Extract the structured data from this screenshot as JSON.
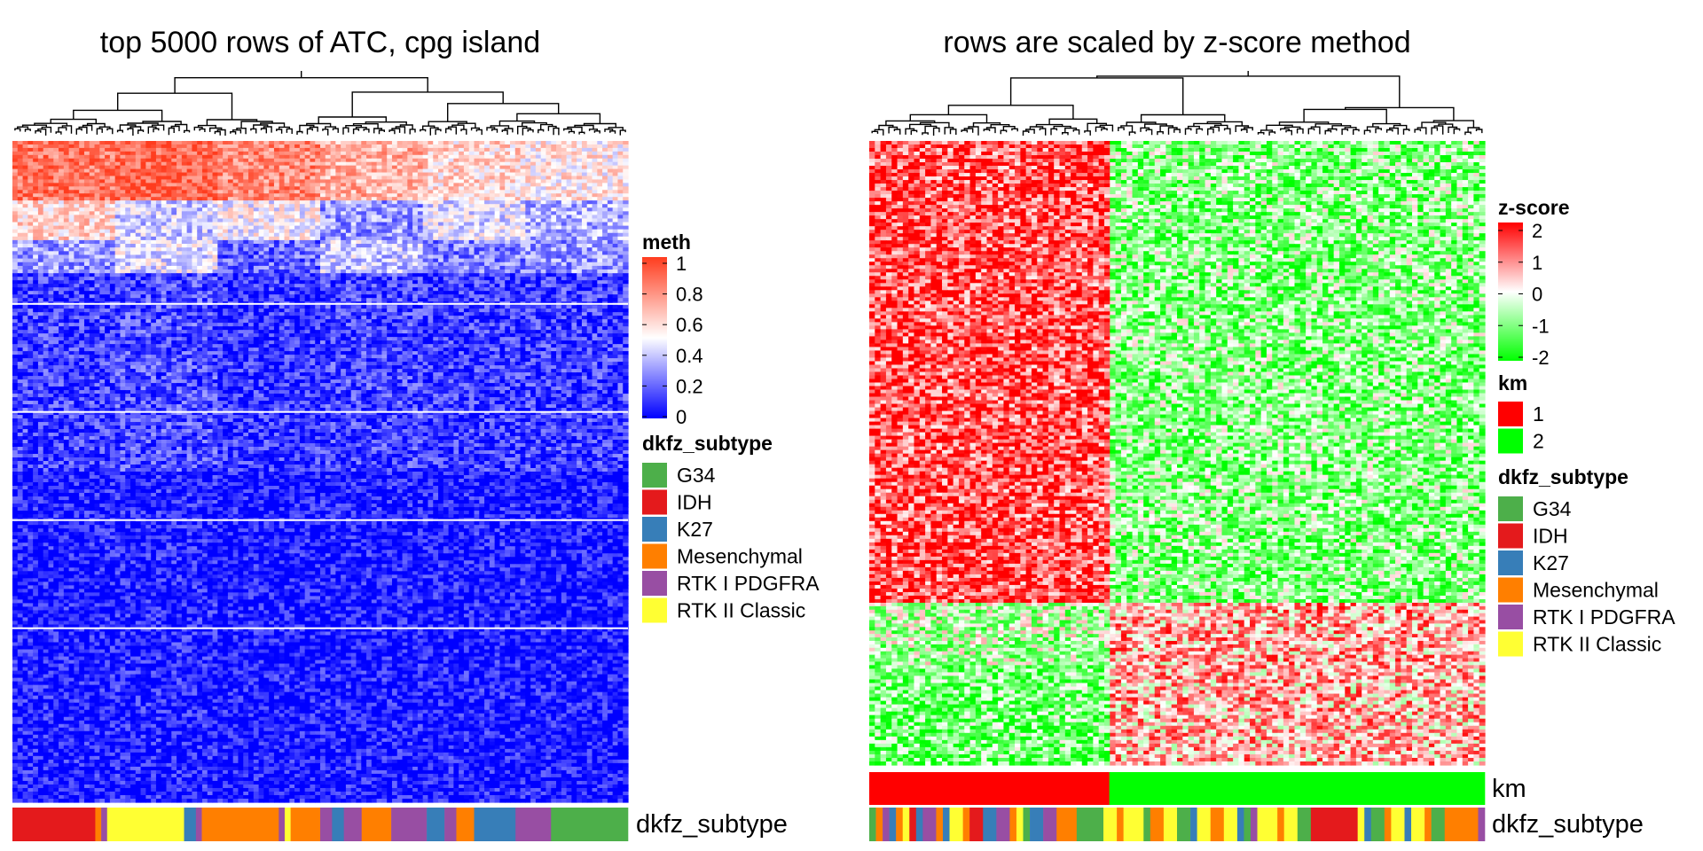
{
  "chart_data": [
    {
      "type": "heatmap",
      "title": "top 5000 rows of ATC, cpg island",
      "n_rows": 5000,
      "row_split_lines": 4,
      "dendrogram": "columns",
      "bands": [
        {
          "values": [
            0.85,
            0.9,
            0.8,
            0.7,
            0.6,
            0.55
          ],
          "weight": 0.09
        },
        {
          "values": [
            0.6,
            0.4,
            0.5,
            0.3,
            0.45,
            0.35
          ],
          "weight": 0.06
        },
        {
          "values": [
            0.3,
            0.45,
            0.2,
            0.4,
            0.25,
            0.3
          ],
          "weight": 0.05
        },
        {
          "values": [
            0.12,
            0.15,
            0.1,
            0.13,
            0.11,
            0.12
          ],
          "weight": 0.3
        },
        {
          "values": [
            0.05,
            0.06,
            0.04,
            0.05,
            0.05,
            0.04
          ],
          "weight": 0.5
        }
      ],
      "legend_meth": {
        "title": "meth",
        "ticks": [
          "1",
          "0.8",
          "0.6",
          "0.4",
          "0.2",
          "0"
        ],
        "colors": [
          "#0000ff",
          "#ffffff",
          "#ff3c1e"
        ]
      },
      "legend_subtype": {
        "title": "dkfz_subtype",
        "entries": [
          {
            "label": "G34",
            "color": "#4daf4a"
          },
          {
            "label": "IDH",
            "color": "#e41a1c"
          },
          {
            "label": "K27",
            "color": "#377eb8"
          },
          {
            "label": "Mesenchymal",
            "color": "#ff7f00"
          },
          {
            "label": "RTK I PDGFRA",
            "color": "#984ea3"
          },
          {
            "label": "RTK II Classic",
            "color": "#ffff33"
          }
        ]
      },
      "annotation_label": "dkfz_subtype",
      "annotation_segments": [
        {
          "cat": "IDH",
          "w": 14
        },
        {
          "cat": "Mesenchymal",
          "w": 1
        },
        {
          "cat": "RTK I PDGFRA",
          "w": 1
        },
        {
          "cat": "RTK II Classic",
          "w": 13
        },
        {
          "cat": "K27",
          "w": 2
        },
        {
          "cat": "RTK I PDGFRA",
          "w": 1
        },
        {
          "cat": "Mesenchymal",
          "w": 13
        },
        {
          "cat": "RTK I PDGFRA",
          "w": 1
        },
        {
          "cat": "RTK II Classic",
          "w": 1
        },
        {
          "cat": "Mesenchymal",
          "w": 5
        },
        {
          "cat": "RTK I PDGFRA",
          "w": 2
        },
        {
          "cat": "K27",
          "w": 2
        },
        {
          "cat": "RTK I PDGFRA",
          "w": 3
        },
        {
          "cat": "Mesenchymal",
          "w": 5
        },
        {
          "cat": "RTK I PDGFRA",
          "w": 6
        },
        {
          "cat": "K27",
          "w": 3
        },
        {
          "cat": "RTK I PDGFRA",
          "w": 2
        },
        {
          "cat": "Mesenchymal",
          "w": 3
        },
        {
          "cat": "K27",
          "w": 7
        },
        {
          "cat": "RTK I PDGFRA",
          "w": 6
        },
        {
          "cat": "G34",
          "w": 13
        }
      ]
    },
    {
      "type": "heatmap",
      "title": "rows are scaled by z-score method",
      "dendrogram": "columns",
      "cluster_split": 0.39,
      "row_groups": [
        {
          "weight": 0.74,
          "values": [
            1.4,
            -0.9
          ]
        },
        {
          "weight": 0.1,
          "values": [
            -0.6,
            0.7
          ]
        },
        {
          "weight": 0.16,
          "values": [
            -1.1,
            0.6
          ]
        }
      ],
      "legend_z": {
        "title": "z-score",
        "ticks": [
          "2",
          "1",
          "0",
          "-1",
          "-2"
        ],
        "colors": [
          "#00ff00",
          "#ffffff",
          "#ff0000"
        ]
      },
      "legend_km": {
        "title": "km",
        "entries": [
          {
            "label": "1",
            "color": "#ff0000"
          },
          {
            "label": "2",
            "color": "#00ff00"
          }
        ]
      },
      "legend_subtype": {
        "title": "dkfz_subtype",
        "entries": [
          {
            "label": "G34",
            "color": "#4daf4a"
          },
          {
            "label": "IDH",
            "color": "#e41a1c"
          },
          {
            "label": "K27",
            "color": "#377eb8"
          },
          {
            "label": "Mesenchymal",
            "color": "#ff7f00"
          },
          {
            "label": "RTK I PDGFRA",
            "color": "#984ea3"
          },
          {
            "label": "RTK II Classic",
            "color": "#ffff33"
          }
        ]
      },
      "km_label": "km",
      "km_segments": [
        {
          "cat": "1",
          "w": 39
        },
        {
          "cat": "2",
          "w": 61
        }
      ],
      "annotation_label": "dkfz_subtype",
      "annotation_segments": [
        {
          "cat": "G34",
          "w": 1
        },
        {
          "cat": "Mesenchymal",
          "w": 1
        },
        {
          "cat": "RTK I PDGFRA",
          "w": 1
        },
        {
          "cat": "K27",
          "w": 1
        },
        {
          "cat": "Mesenchymal",
          "w": 1
        },
        {
          "cat": "RTK II Classic",
          "w": 1
        },
        {
          "cat": "IDH",
          "w": 1
        },
        {
          "cat": "K27",
          "w": 1
        },
        {
          "cat": "RTK I PDGFRA",
          "w": 2
        },
        {
          "cat": "Mesenchymal",
          "w": 1
        },
        {
          "cat": "K27",
          "w": 1
        },
        {
          "cat": "RTK II Classic",
          "w": 2
        },
        {
          "cat": "Mesenchymal",
          "w": 1
        },
        {
          "cat": "IDH",
          "w": 2
        },
        {
          "cat": "K27",
          "w": 2
        },
        {
          "cat": "RTK I PDGFRA",
          "w": 2
        },
        {
          "cat": "Mesenchymal",
          "w": 1
        },
        {
          "cat": "RTK II Classic",
          "w": 1
        },
        {
          "cat": "G34",
          "w": 1
        },
        {
          "cat": "K27",
          "w": 2
        },
        {
          "cat": "RTK I PDGFRA",
          "w": 2
        },
        {
          "cat": "Mesenchymal",
          "w": 3
        },
        {
          "cat": "G34",
          "w": 4
        },
        {
          "cat": "RTK II Classic",
          "w": 2
        },
        {
          "cat": "Mesenchymal",
          "w": 1
        },
        {
          "cat": "RTK II Classic",
          "w": 3
        },
        {
          "cat": "G34",
          "w": 1
        },
        {
          "cat": "Mesenchymal",
          "w": 2
        },
        {
          "cat": "RTK II Classic",
          "w": 2
        },
        {
          "cat": "G34",
          "w": 2
        },
        {
          "cat": "K27",
          "w": 1
        },
        {
          "cat": "RTK II Classic",
          "w": 2
        },
        {
          "cat": "Mesenchymal",
          "w": 2
        },
        {
          "cat": "RTK II Classic",
          "w": 2
        },
        {
          "cat": "K27",
          "w": 1
        },
        {
          "cat": "G34",
          "w": 1
        },
        {
          "cat": "RTK I PDGFRA",
          "w": 1
        },
        {
          "cat": "RTK II Classic",
          "w": 3
        },
        {
          "cat": "Mesenchymal",
          "w": 1
        },
        {
          "cat": "RTK II Classic",
          "w": 2
        },
        {
          "cat": "G34",
          "w": 2
        },
        {
          "cat": "IDH",
          "w": 7
        },
        {
          "cat": "RTK II Classic",
          "w": 1
        },
        {
          "cat": "K27",
          "w": 1
        },
        {
          "cat": "G34",
          "w": 2
        },
        {
          "cat": "Mesenchymal",
          "w": 1
        },
        {
          "cat": "RTK II Classic",
          "w": 2
        },
        {
          "cat": "K27",
          "w": 1
        },
        {
          "cat": "RTK II Classic",
          "w": 2
        },
        {
          "cat": "Mesenchymal",
          "w": 1
        },
        {
          "cat": "G34",
          "w": 2
        },
        {
          "cat": "Mesenchymal",
          "w": 5
        },
        {
          "cat": "RTK I PDGFRA",
          "w": 1
        }
      ]
    }
  ]
}
